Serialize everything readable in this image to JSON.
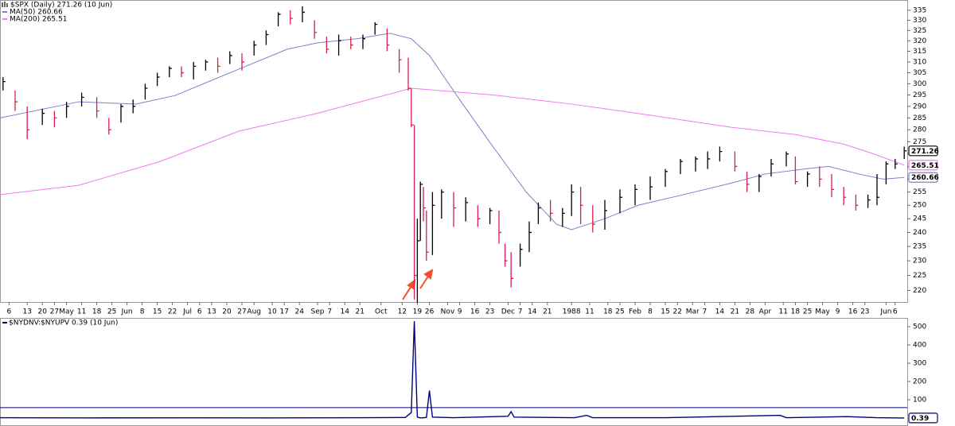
{
  "chart_data": [
    {
      "type": "ohlc",
      "title": "$SPX (Daily) 271.26 (10 Jun)",
      "log_scale": true,
      "xlim": [
        0,
        300
      ],
      "ylim": [
        216.2,
        340.2
      ],
      "yticks": [
        220,
        225,
        230,
        235,
        240,
        245,
        250,
        255,
        260,
        265,
        270,
        275,
        280,
        285,
        290,
        295,
        300,
        305,
        310,
        315,
        320,
        325,
        330,
        335
      ],
      "xticks": [
        {
          "value": 3,
          "label": "6"
        },
        {
          "value": 9,
          "label": "13"
        },
        {
          "value": 14,
          "label": "20"
        },
        {
          "value": 18,
          "label": "27"
        },
        {
          "value": 22,
          "label": "May"
        },
        {
          "value": 27,
          "label": "11"
        },
        {
          "value": 32,
          "label": "18"
        },
        {
          "value": 37,
          "label": "25"
        },
        {
          "value": 42,
          "label": "Jun"
        },
        {
          "value": 47,
          "label": "8"
        },
        {
          "value": 52,
          "label": "15"
        },
        {
          "value": 57,
          "label": "22"
        },
        {
          "value": 62,
          "label": "Jul"
        },
        {
          "value": 66,
          "label": "6"
        },
        {
          "value": 70,
          "label": "13"
        },
        {
          "value": 75,
          "label": "20"
        },
        {
          "value": 80,
          "label": "27"
        },
        {
          "value": 84,
          "label": "Aug"
        },
        {
          "value": 90,
          "label": "10"
        },
        {
          "value": 94,
          "label": "17"
        },
        {
          "value": 99,
          "label": "24"
        },
        {
          "value": 105,
          "label": "Sep"
        },
        {
          "value": 109,
          "label": "7"
        },
        {
          "value": 114,
          "label": "14"
        },
        {
          "value": 119,
          "label": "21"
        },
        {
          "value": 126,
          "label": "Oct"
        },
        {
          "value": 133,
          "label": "12"
        },
        {
          "value": 138,
          "label": "19"
        },
        {
          "value": 142,
          "label": "26"
        },
        {
          "value": 148,
          "label": "Nov"
        },
        {
          "value": 152,
          "label": "9"
        },
        {
          "value": 157,
          "label": "16"
        },
        {
          "value": 162,
          "label": "23"
        },
        {
          "value": 168,
          "label": "Dec"
        },
        {
          "value": 172,
          "label": "7"
        },
        {
          "value": 176,
          "label": "14"
        },
        {
          "value": 181,
          "label": "21"
        },
        {
          "value": 189,
          "label": "1988"
        },
        {
          "value": 195,
          "label": "11"
        },
        {
          "value": 201,
          "label": "18"
        },
        {
          "value": 205,
          "label": "25"
        },
        {
          "value": 210,
          "label": "Feb"
        },
        {
          "value": 215,
          "label": "8"
        },
        {
          "value": 220,
          "label": "15"
        },
        {
          "value": 224,
          "label": "22"
        },
        {
          "value": 229,
          "label": "Mar"
        },
        {
          "value": 233,
          "label": "7"
        },
        {
          "value": 238,
          "label": "14"
        },
        {
          "value": 243,
          "label": "21"
        },
        {
          "value": 248,
          "label": "28"
        },
        {
          "value": 253,
          "label": "Apr"
        },
        {
          "value": 259,
          "label": "11"
        },
        {
          "value": 263,
          "label": "18"
        },
        {
          "value": 267,
          "label": "25"
        },
        {
          "value": 272,
          "label": "May"
        },
        {
          "value": 277,
          "label": "9"
        },
        {
          "value": 282,
          "label": "16"
        },
        {
          "value": 286,
          "label": "23"
        },
        {
          "value": 293,
          "label": "Jun"
        },
        {
          "value": 296,
          "label": "6"
        }
      ],
      "price": {
        "up_color": "#000000",
        "down_color": "#d81e4a",
        "x": [
          1,
          5,
          9,
          14,
          18,
          22,
          27,
          32,
          36,
          40,
          44,
          48,
          52,
          56,
          60,
          64,
          68,
          72,
          76,
          80,
          84,
          88,
          92,
          96,
          100,
          104,
          108,
          112,
          116,
          120,
          124,
          128,
          132,
          135,
          136,
          137,
          138,
          139,
          140,
          141,
          143,
          146,
          150,
          154,
          158,
          162,
          165,
          167,
          169,
          172,
          175,
          178,
          182,
          186,
          189,
          192,
          196,
          200,
          205,
          210,
          215,
          220,
          225,
          230,
          234,
          238,
          243,
          247,
          251,
          255,
          260,
          263,
          267,
          271,
          275,
          279,
          283,
          287,
          290,
          293,
          296,
          299
        ],
        "high": [
          303,
          297,
          290,
          289,
          288,
          292,
          296,
          294,
          285,
          291,
          293,
          300,
          305,
          308,
          308,
          310,
          311,
          312,
          315,
          314,
          320,
          325,
          334,
          335,
          337,
          330,
          322,
          323,
          322,
          323,
          329,
          326,
          316,
          312,
          298,
          282,
          245,
          259,
          257,
          248,
          255,
          256,
          255,
          253,
          250,
          249,
          248,
          236,
          233,
          236,
          244,
          251,
          252,
          249,
          258,
          257,
          250,
          252,
          256,
          258,
          261,
          264,
          268,
          269,
          271,
          273,
          271,
          263,
          262,
          268,
          271,
          269,
          263,
          265,
          262,
          257,
          254,
          254,
          262,
          267,
          268,
          273
        ],
        "low": [
          297,
          288,
          276,
          282,
          281,
          285,
          290,
          285,
          278,
          283,
          287,
          293,
          299,
          303,
          303,
          302,
          306,
          305,
          309,
          306,
          313,
          318,
          327,
          328,
          329,
          321,
          314,
          313,
          316,
          316,
          323,
          315,
          305,
          297,
          281,
          217,
          216,
          237,
          244,
          230,
          232,
          245,
          242,
          244,
          242,
          243,
          236,
          228,
          221,
          228,
          233,
          243,
          244,
          242,
          246,
          243,
          240,
          241,
          247,
          250,
          252,
          257,
          262,
          263,
          264,
          267,
          263,
          255,
          255,
          261,
          265,
          258,
          257,
          257,
          253,
          250,
          248,
          249,
          250,
          258,
          264,
          268
        ],
        "close": [
          301,
          292,
          280,
          287,
          285,
          290,
          294,
          288,
          280,
          290,
          290,
          298,
          303,
          307,
          305,
          308,
          310,
          308,
          313,
          310,
          318,
          323,
          333,
          331,
          334,
          324,
          316,
          320,
          318,
          321,
          328,
          318,
          311,
          298,
          282,
          225,
          237,
          258,
          249,
          233,
          250,
          255,
          249,
          251,
          245,
          248,
          240,
          230,
          224,
          234,
          240,
          249,
          247,
          247,
          255,
          250,
          243,
          248,
          253,
          256,
          257,
          263,
          267,
          268,
          268,
          271,
          265,
          258,
          261,
          266,
          270,
          259,
          262,
          260,
          256,
          253,
          250,
          252,
          253,
          266,
          266,
          271.26
        ]
      },
      "series": [
        {
          "name": "MA(50) 260.66",
          "color": "#7d80c6",
          "x": [
            0,
            26,
            45,
            58,
            79,
            95,
            105,
            118,
            129,
            136,
            142,
            153,
            163,
            174,
            184,
            189,
            200,
            211,
            226,
            242,
            253,
            266,
            274,
            284,
            292,
            299
          ],
          "values": [
            285,
            292,
            291,
            294.8,
            306.7,
            316,
            319,
            321,
            323.6,
            321,
            313,
            291,
            273,
            255,
            243,
            241,
            245,
            250,
            254,
            258.5,
            262,
            264,
            265,
            262,
            260,
            260.66
          ]
        },
        {
          "name": "MA(200) 265.51",
          "color": "#f07af0",
          "x": [
            0,
            26,
            53,
            79,
            105,
            136,
            163,
            189,
            216,
            242,
            263,
            279,
            289,
            299
          ],
          "values": [
            254,
            257.6,
            267,
            279.4,
            287,
            298,
            295,
            291,
            286,
            281,
            278,
            274,
            270,
            265.51
          ]
        }
      ]
    },
    {
      "type": "line",
      "title": "$NYDNV:$NYUPV 0.39 (10 Jun)",
      "xlim": [
        0,
        300
      ],
      "ylim": [
        -43.5,
        548
      ],
      "yticks": [
        100,
        200,
        300,
        400,
        500
      ],
      "reference_line": 57,
      "series": [
        {
          "color": "#00007f",
          "x": [
            0,
            30,
            60,
            90,
            120,
            134,
            136,
            137,
            138,
            139,
            141,
            142,
            143,
            150,
            168,
            169,
            170,
            190,
            194,
            196,
            220,
            258,
            260,
            280,
            290,
            299
          ],
          "values": [
            2,
            1,
            1.5,
            1,
            2,
            3,
            30,
            530,
            5,
            1,
            3,
            150,
            5,
            2,
            10,
            35,
            5,
            2,
            15,
            2,
            2,
            15,
            2,
            8,
            2,
            0.39
          ]
        }
      ]
    }
  ]
}
